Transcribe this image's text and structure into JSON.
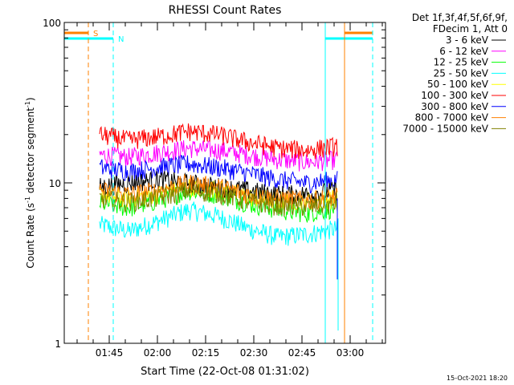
{
  "chart_data": {
    "type": "line",
    "title": "RHESSI Count Rates",
    "xlabel": "Start Time (22-Oct-08 01:31:02)",
    "ylabel_main": "Count Rate (s",
    "ylabel_sup1": "-1",
    "ylabel_mid": " detector segment",
    "ylabel_sup2": "-1",
    "ylabel_end": ")",
    "y_scale": "log",
    "ylim": [
      1,
      100
    ],
    "x_ticks": [
      "01:45",
      "02:00",
      "02:15",
      "02:30",
      "02:45",
      "03:00"
    ],
    "y_ticks": [
      "1",
      "10",
      "100"
    ],
    "legend_header": [
      "Det 1f,3f,4f,5f,6f,9f,",
      "FDecim 1, Att 0"
    ],
    "footer_date": "15-Oct-2021 18:20",
    "flags": [
      {
        "label": "S",
        "color": "#ff8000"
      },
      {
        "label": "N",
        "color": "#00ffff"
      }
    ],
    "series": [
      {
        "name": "3 - 6 keV",
        "color": "#000000",
        "values": [
          9.5,
          10.0,
          10.5,
          10.0,
          9.5,
          9.0,
          8.5,
          8.5,
          9.0
        ]
      },
      {
        "name": "6 - 12 keV",
        "color": "#ff00ff",
        "values": [
          15.0,
          14.5,
          15.5,
          16.5,
          16.0,
          15.0,
          14.0,
          13.5,
          14.0
        ]
      },
      {
        "name": "12 - 25 keV",
        "color": "#00ff00",
        "values": [
          7.5,
          7.0,
          7.8,
          9.0,
          8.5,
          7.5,
          6.8,
          6.5,
          7.0
        ]
      },
      {
        "name": "25 - 50 keV",
        "color": "#00ffff",
        "values": [
          5.5,
          5.0,
          5.8,
          6.8,
          6.2,
          5.2,
          4.6,
          4.8,
          5.2
        ]
      },
      {
        "name": "50 - 100 keV",
        "color": "#ffff00",
        "values": [
          8.5,
          8.0,
          8.6,
          9.5,
          9.2,
          8.2,
          7.8,
          7.8,
          8.0
        ]
      },
      {
        "name": "100 - 300 keV",
        "color": "#ff0000",
        "values": [
          20.0,
          18.5,
          19.5,
          21.0,
          20.0,
          18.0,
          16.5,
          16.0,
          17.0
        ]
      },
      {
        "name": "300 - 800 keV",
        "color": "#0000ff",
        "values": [
          12.5,
          11.8,
          12.5,
          13.2,
          12.5,
          11.5,
          10.5,
          10.0,
          10.5
        ]
      },
      {
        "name": "800 - 7000 keV",
        "color": "#ff8000",
        "values": [
          9.0,
          8.5,
          9.0,
          10.0,
          9.5,
          8.5,
          8.0,
          7.8,
          8.2
        ]
      },
      {
        "name": "7000 - 15000 keV",
        "color": "#808000",
        "values": [
          8.0,
          7.6,
          8.1,
          9.0,
          8.6,
          7.7,
          7.2,
          7.1,
          7.4
        ]
      }
    ]
  }
}
